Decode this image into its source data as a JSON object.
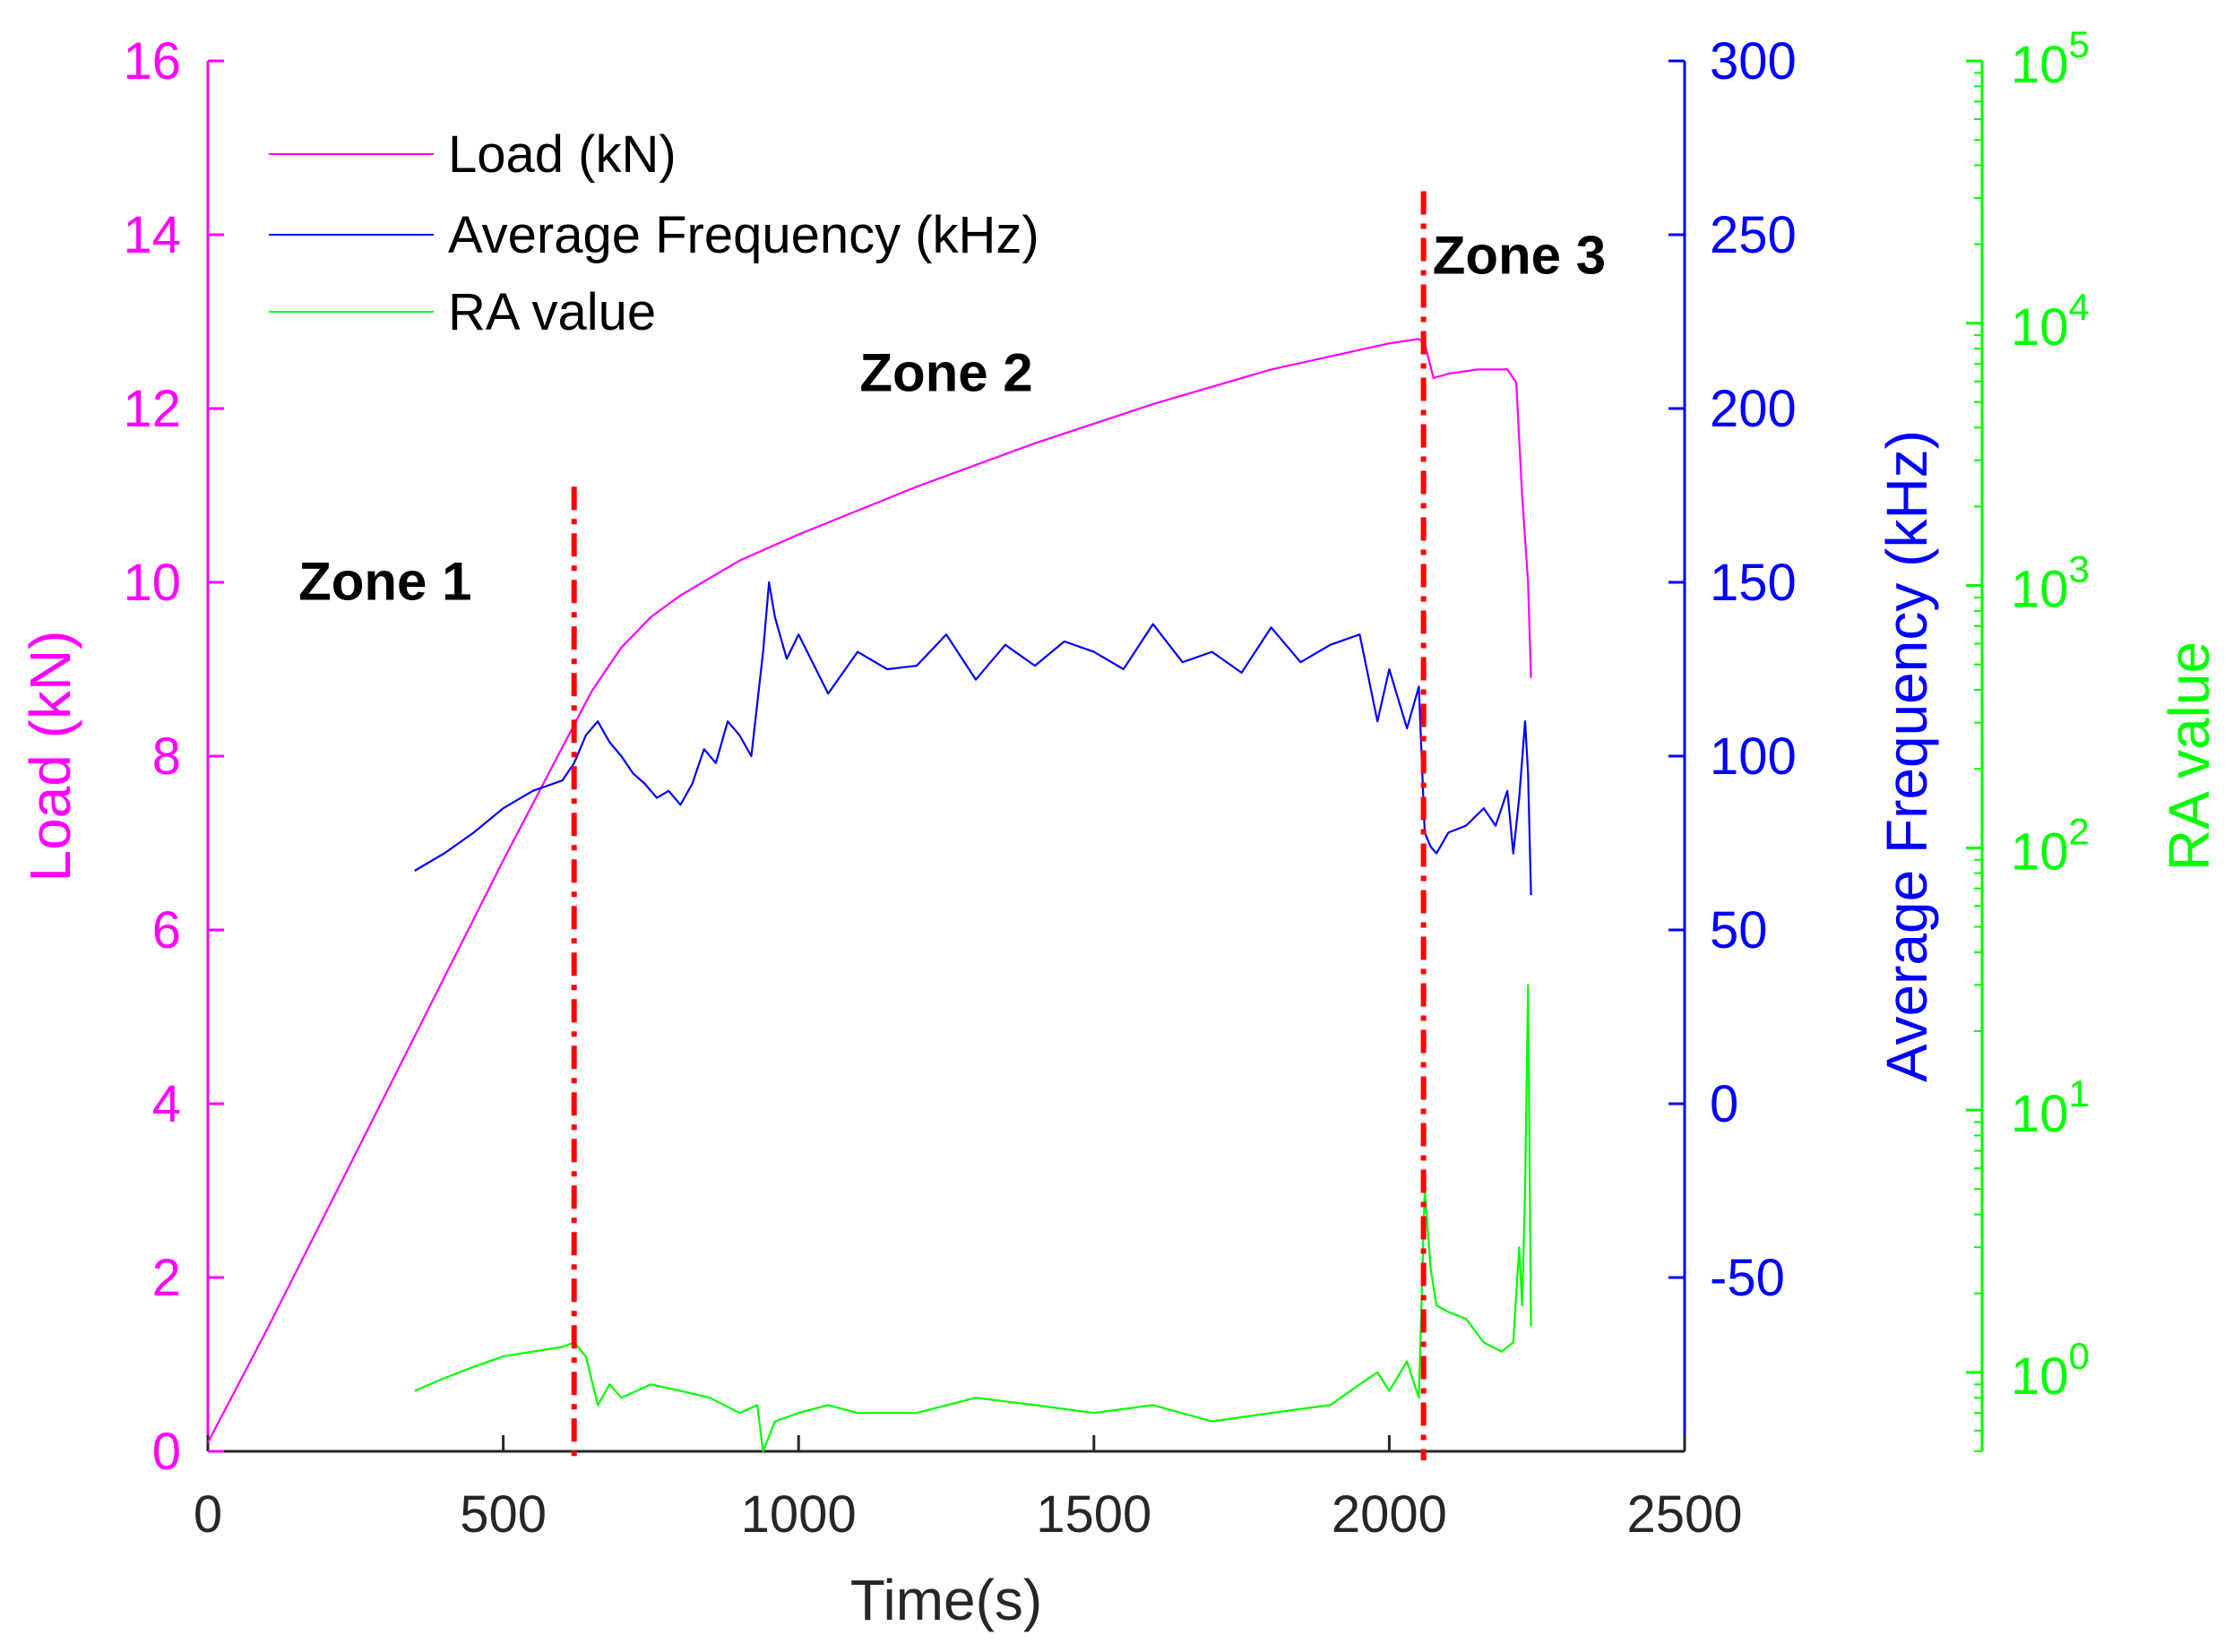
{
  "chart_data": {
    "type": "line",
    "xlabel": "Time(s)",
    "xlim": [
      0,
      2500
    ],
    "xticks": [
      0,
      500,
      1000,
      1500,
      2000,
      2500
    ],
    "axes": {
      "left": {
        "label": "Load (kN)",
        "color": "#ff00ff",
        "lim": [
          0,
          16
        ],
        "ticks": [
          0,
          2,
          4,
          6,
          8,
          10,
          12,
          14,
          16
        ]
      },
      "right1": {
        "label": "Average Frequency (kHz)",
        "color": "#0000ff",
        "lim": [
          -100,
          300
        ],
        "ticks": [
          -50,
          0,
          50,
          100,
          150,
          200,
          250,
          300
        ]
      },
      "right2": {
        "label": "RA value",
        "color": "#00ff00",
        "scale": "log",
        "lim": [
          0.5,
          100000
        ],
        "ticks": [
          1,
          10,
          100,
          1000,
          10000,
          100000
        ],
        "tick_labels": [
          {
            "base": "10",
            "exp": "0"
          },
          {
            "base": "10",
            "exp": "1"
          },
          {
            "base": "10",
            "exp": "2"
          },
          {
            "base": "10",
            "exp": "3"
          },
          {
            "base": "10",
            "exp": "4"
          },
          {
            "base": "10",
            "exp": "5"
          }
        ]
      }
    },
    "series": [
      {
        "name": "Load (kN)",
        "axis": "left",
        "color": "#ff00ff",
        "x": [
          0,
          100,
          200,
          300,
          400,
          500,
          600,
          650,
          700,
          750,
          800,
          900,
          1000,
          1200,
          1400,
          1600,
          1800,
          2000,
          2050,
          2060,
          2075,
          2100,
          2150,
          2200,
          2215,
          2225,
          2235,
          2240
        ],
        "y": [
          0.1,
          1.4,
          2.75,
          4.1,
          5.45,
          6.8,
          8.1,
          8.75,
          9.25,
          9.6,
          9.85,
          10.25,
          10.55,
          11.1,
          11.6,
          12.05,
          12.45,
          12.75,
          12.8,
          12.75,
          12.35,
          12.4,
          12.45,
          12.45,
          12.3,
          11.0,
          10.0,
          8.9
        ]
      },
      {
        "name": "Average Frequency (kHz)",
        "axis": "right1",
        "color": "#0000ff",
        "x": [
          350,
          400,
          450,
          500,
          550,
          600,
          620,
          640,
          660,
          680,
          700,
          720,
          740,
          760,
          780,
          800,
          820,
          840,
          860,
          880,
          900,
          920,
          940,
          950,
          960,
          980,
          1000,
          1050,
          1100,
          1150,
          1200,
          1250,
          1300,
          1350,
          1400,
          1450,
          1500,
          1550,
          1600,
          1650,
          1700,
          1750,
          1800,
          1850,
          1900,
          1950,
          1980,
          2000,
          2030,
          2050,
          2060,
          2070,
          2080,
          2100,
          2130,
          2160,
          2180,
          2200,
          2210,
          2220,
          2230,
          2235,
          2240
        ],
        "y": [
          67,
          72,
          78,
          85,
          90,
          93,
          98,
          106,
          110,
          104,
          100,
          95,
          92,
          88,
          90,
          86,
          92,
          102,
          98,
          110,
          106,
          100,
          130,
          150,
          140,
          128,
          135,
          118,
          130,
          125,
          126,
          135,
          122,
          132,
          126,
          133,
          130,
          125,
          138,
          127,
          130,
          124,
          137,
          127,
          132,
          135,
          110,
          125,
          108,
          120,
          78,
          74,
          72,
          78,
          80,
          85,
          80,
          90,
          72,
          88,
          110,
          95,
          60
        ]
      },
      {
        "name": "RA value",
        "axis": "right2",
        "color": "#00ff00",
        "x": [
          350,
          400,
          450,
          500,
          550,
          600,
          620,
          640,
          660,
          680,
          700,
          750,
          800,
          850,
          900,
          930,
          940,
          960,
          1000,
          1050,
          1100,
          1200,
          1300,
          1400,
          1500,
          1600,
          1700,
          1800,
          1900,
          1950,
          1980,
          2000,
          2030,
          2050,
          2060,
          2070,
          2080,
          2100,
          2130,
          2160,
          2190,
          2210,
          2220,
          2225,
          2230,
          2235,
          2240
        ],
        "y": [
          0.85,
          0.95,
          1.05,
          1.15,
          1.2,
          1.25,
          1.3,
          1.15,
          0.75,
          0.9,
          0.8,
          0.9,
          0.85,
          0.8,
          0.7,
          0.75,
          0.5,
          0.65,
          0.7,
          0.75,
          0.7,
          0.7,
          0.8,
          0.75,
          0.7,
          0.75,
          0.65,
          0.7,
          0.75,
          0.9,
          1.0,
          0.85,
          1.1,
          0.8,
          5.0,
          2.5,
          1.8,
          1.7,
          1.6,
          1.3,
          1.2,
          1.3,
          3.0,
          1.8,
          5.0,
          30.0,
          1.5
        ]
      }
    ],
    "zone_lines": [
      620,
      2058
    ],
    "annotations": [
      {
        "text": "Zone 1",
        "x": 300,
        "y": 9.8
      },
      {
        "text": "Zone 2",
        "x": 1250,
        "y": 12.2
      },
      {
        "text": "Zone 3",
        "x": 2220,
        "y": 13.55
      }
    ],
    "legend": {
      "position": "top-left",
      "entries": [
        "Load (kN)",
        "Average Frequency (kHz)",
        "RA value"
      ]
    }
  }
}
